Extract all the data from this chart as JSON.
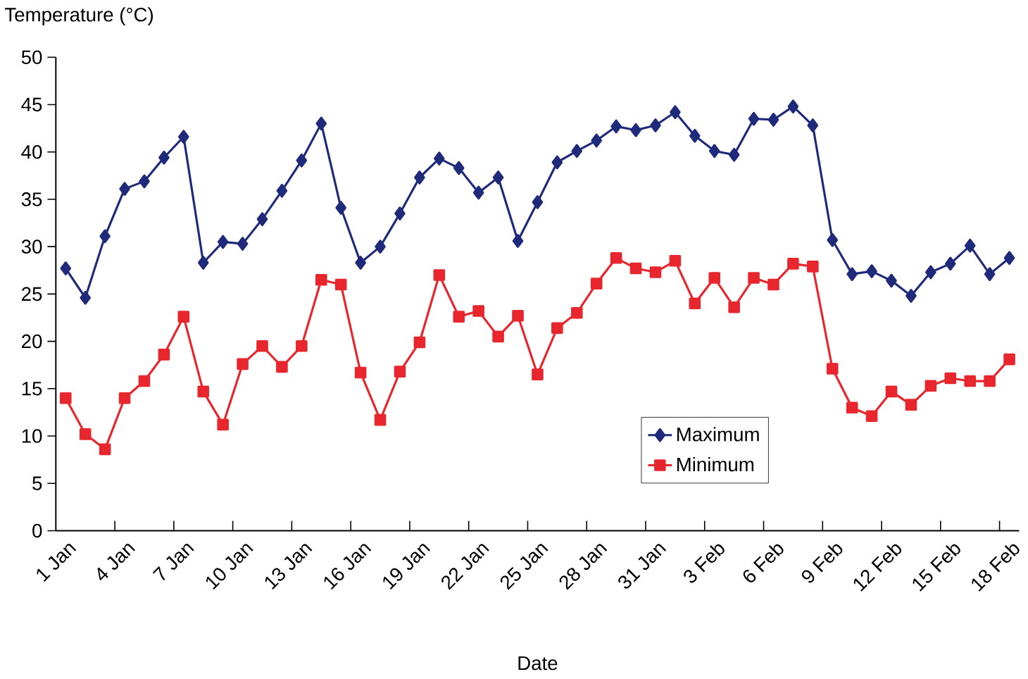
{
  "chart_data": {
    "type": "line",
    "xlabel": "Date",
    "ylabel": "Temperature (°C)",
    "categories": [
      "1 Jan",
      null,
      null,
      "4 Jan",
      null,
      null,
      "7 Jan",
      null,
      null,
      "10 Jan",
      null,
      null,
      "13 Jan",
      null,
      null,
      "16 Jan",
      null,
      null,
      "19 Jan",
      null,
      null,
      "22 Jan",
      null,
      null,
      "25 Jan",
      null,
      null,
      "28 Jan",
      null,
      null,
      "31 Jan",
      null,
      null,
      "3 Feb",
      null,
      null,
      "6 Feb",
      null,
      null,
      "9 Feb",
      null,
      null,
      "12 Feb",
      null,
      null,
      "15 Feb",
      null,
      null,
      "18 Feb"
    ],
    "ylim": [
      0,
      50
    ],
    "yticks": [
      0,
      5,
      10,
      15,
      20,
      25,
      30,
      35,
      40,
      45,
      50
    ],
    "legend": "bottom right",
    "grid": false,
    "line_style": "solid",
    "series": [
      {
        "name": "Maximum",
        "color": "#1f2a7a",
        "marker": "diamond",
        "values": [
          27.7,
          24.6,
          31.1,
          36.1,
          36.9,
          39.4,
          41.6,
          28.3,
          30.5,
          30.3,
          32.9,
          35.9,
          39.1,
          43.0,
          34.1,
          28.3,
          30.0,
          33.5,
          37.3,
          39.3,
          38.3,
          35.7,
          37.3,
          30.6,
          34.7,
          38.9,
          40.1,
          41.2,
          42.7,
          42.3,
          42.8,
          44.2,
          41.7,
          40.1,
          39.7,
          43.5,
          43.4,
          44.8,
          42.8,
          30.7,
          27.1,
          27.4,
          26.4,
          24.8,
          27.3,
          28.2,
          30.1,
          27.1,
          28.8
        ]
      },
      {
        "name": "Minimum",
        "color": "#e8262d",
        "marker": "square",
        "values": [
          14.0,
          10.2,
          8.6,
          14.0,
          15.8,
          18.6,
          22.6,
          14.7,
          11.2,
          17.6,
          19.5,
          17.3,
          19.5,
          26.5,
          26.0,
          16.7,
          11.7,
          16.8,
          19.9,
          27.0,
          22.6,
          23.2,
          20.5,
          22.7,
          16.5,
          21.4,
          23.0,
          26.1,
          28.8,
          27.7,
          27.3,
          28.5,
          24.0,
          26.7,
          23.6,
          26.7,
          26.0,
          28.2,
          27.9,
          17.1,
          13.0,
          12.1,
          14.7,
          13.3,
          15.3,
          16.1,
          15.8,
          15.8,
          18.1
        ]
      }
    ]
  }
}
